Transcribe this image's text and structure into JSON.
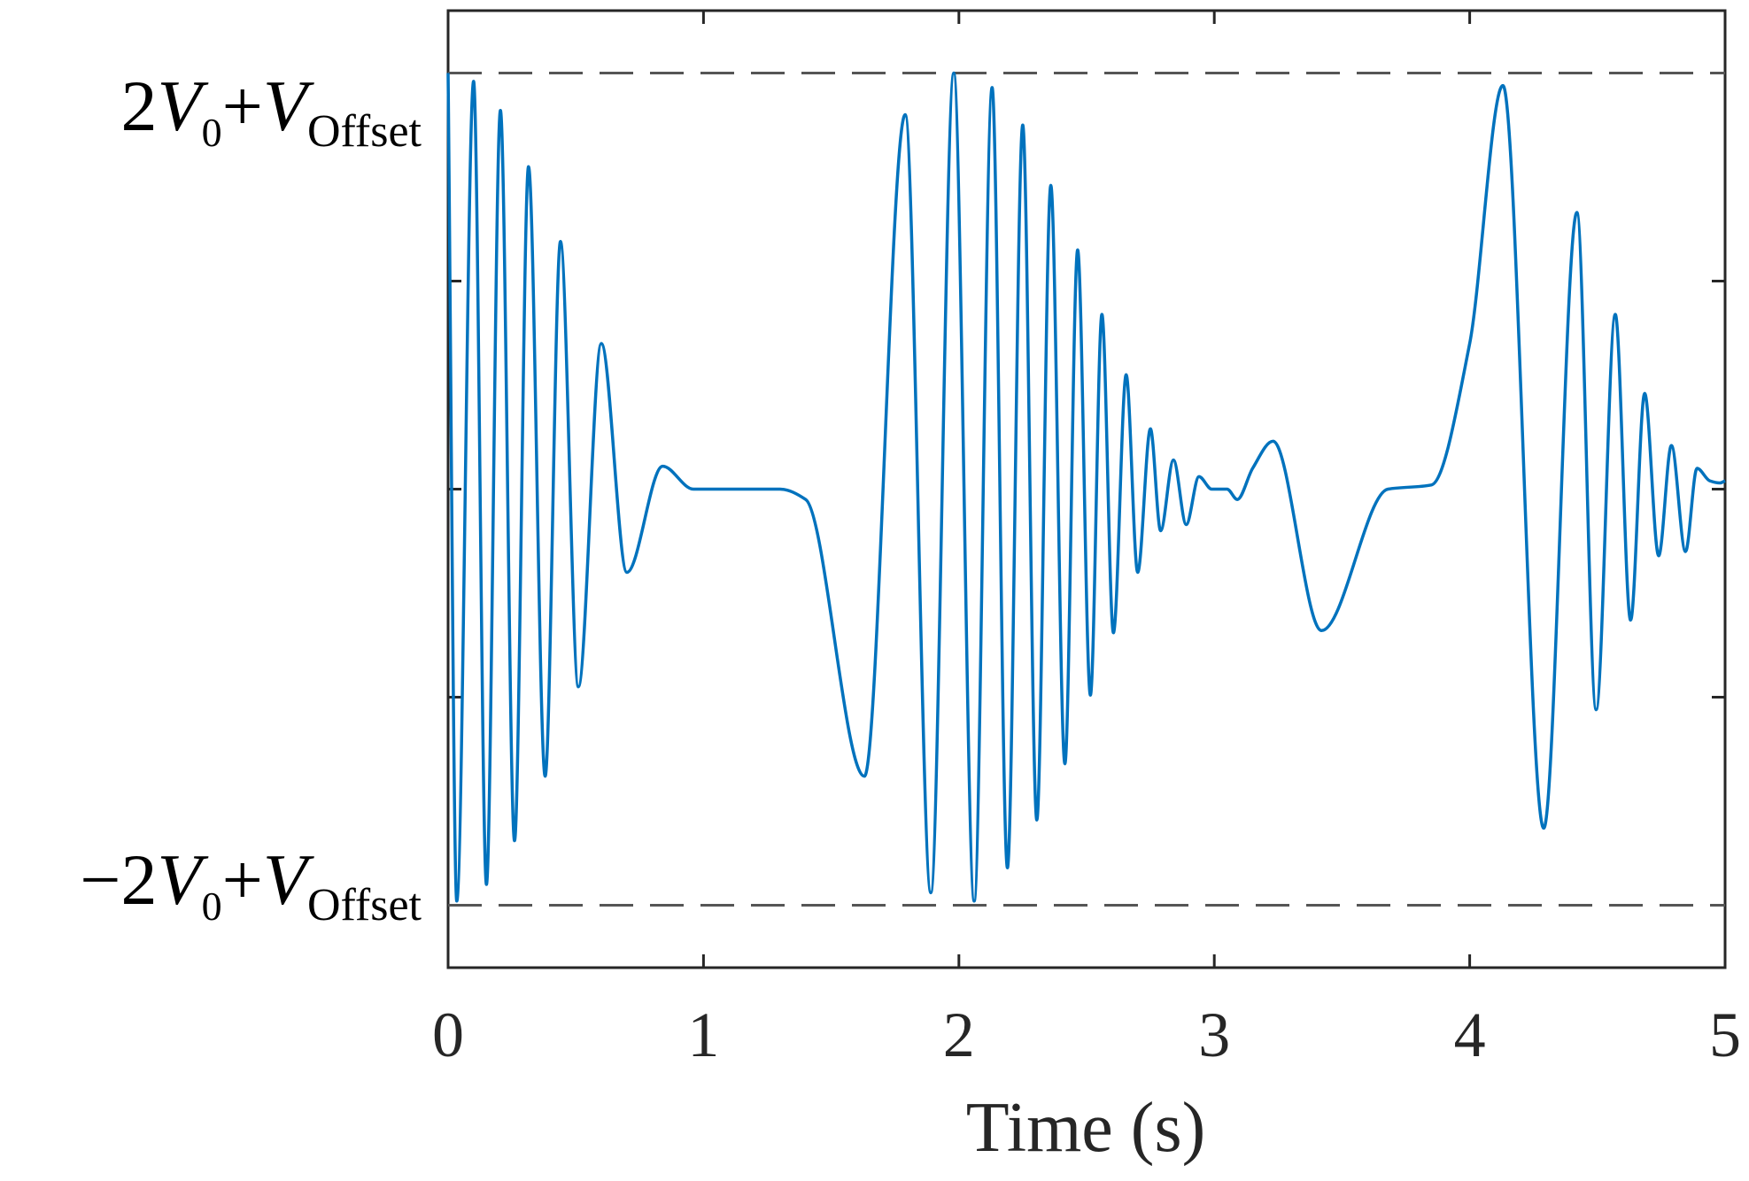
{
  "chart_data": {
    "type": "line",
    "title": "",
    "xlabel": "Time (s)",
    "ylabel": "",
    "xlim": [
      0,
      5
    ],
    "ylim": [
      -2.3,
      2.3
    ],
    "x_ticks": [
      "0",
      "1",
      "2",
      "3",
      "4",
      "5"
    ],
    "y_ticks": [
      -2,
      -1,
      0,
      1,
      2
    ],
    "y_tick_labels": {
      "upper": {
        "coef": "2",
        "V": "V",
        "sub0": "0",
        "plus": "+",
        "V2": "V",
        "sub": "Offset"
      },
      "lower": {
        "coef": "−2",
        "V": "V",
        "sub0": "0",
        "plus": "+",
        "V2": "V",
        "sub": "Offset"
      }
    },
    "reference_lines": [
      {
        "y": 2,
        "style": "dashed",
        "color": "#555555"
      },
      {
        "y": -2,
        "style": "dashed",
        "color": "#555555"
      }
    ],
    "grid": false,
    "series": [
      {
        "color": "#0072BD",
        "points": [
          [
            0.0,
            2.0
          ],
          [
            0.034,
            -1.98
          ],
          [
            0.1,
            1.96
          ],
          [
            0.15,
            -1.9
          ],
          [
            0.205,
            1.82
          ],
          [
            0.26,
            -1.69
          ],
          [
            0.315,
            1.55
          ],
          [
            0.38,
            -1.38
          ],
          [
            0.44,
            1.19
          ],
          [
            0.51,
            -0.95
          ],
          [
            0.6,
            0.7
          ],
          [
            0.7,
            -0.4
          ],
          [
            0.84,
            0.11
          ],
          [
            0.96,
            0.0
          ],
          [
            1.3,
            0.0
          ],
          [
            1.4,
            -0.05
          ],
          [
            1.63,
            -1.38
          ],
          [
            1.79,
            1.8
          ],
          [
            1.89,
            -1.94
          ],
          [
            1.98,
            2.0
          ],
          [
            2.06,
            -1.98
          ],
          [
            2.13,
            1.93
          ],
          [
            2.19,
            -1.82
          ],
          [
            2.25,
            1.75
          ],
          [
            2.305,
            -1.59
          ],
          [
            2.36,
            1.46
          ],
          [
            2.415,
            -1.32
          ],
          [
            2.465,
            1.15
          ],
          [
            2.515,
            -0.99
          ],
          [
            2.56,
            0.84
          ],
          [
            2.605,
            -0.69
          ],
          [
            2.655,
            0.55
          ],
          [
            2.7,
            -0.4
          ],
          [
            2.75,
            0.29
          ],
          [
            2.79,
            -0.2
          ],
          [
            2.84,
            0.14
          ],
          [
            2.89,
            -0.17
          ],
          [
            2.94,
            0.06
          ],
          [
            2.99,
            0.0
          ],
          [
            3.05,
            0.0
          ],
          [
            3.09,
            -0.05
          ],
          [
            3.15,
            0.1
          ],
          [
            3.23,
            0.23
          ],
          [
            3.42,
            -0.68
          ],
          [
            3.68,
            0.0
          ],
          [
            3.85,
            0.02
          ],
          [
            4.0,
            0.7
          ],
          [
            4.13,
            1.94
          ],
          [
            4.29,
            -1.63
          ],
          [
            4.42,
            1.33
          ],
          [
            4.495,
            -1.06
          ],
          [
            4.57,
            0.84
          ],
          [
            4.63,
            -0.63
          ],
          [
            4.685,
            0.46
          ],
          [
            4.74,
            -0.32
          ],
          [
            4.79,
            0.21
          ],
          [
            4.845,
            -0.3
          ],
          [
            4.89,
            0.1
          ],
          [
            4.94,
            0.04
          ],
          [
            4.98,
            0.03
          ],
          [
            5.0,
            0.04
          ]
        ]
      }
    ]
  }
}
